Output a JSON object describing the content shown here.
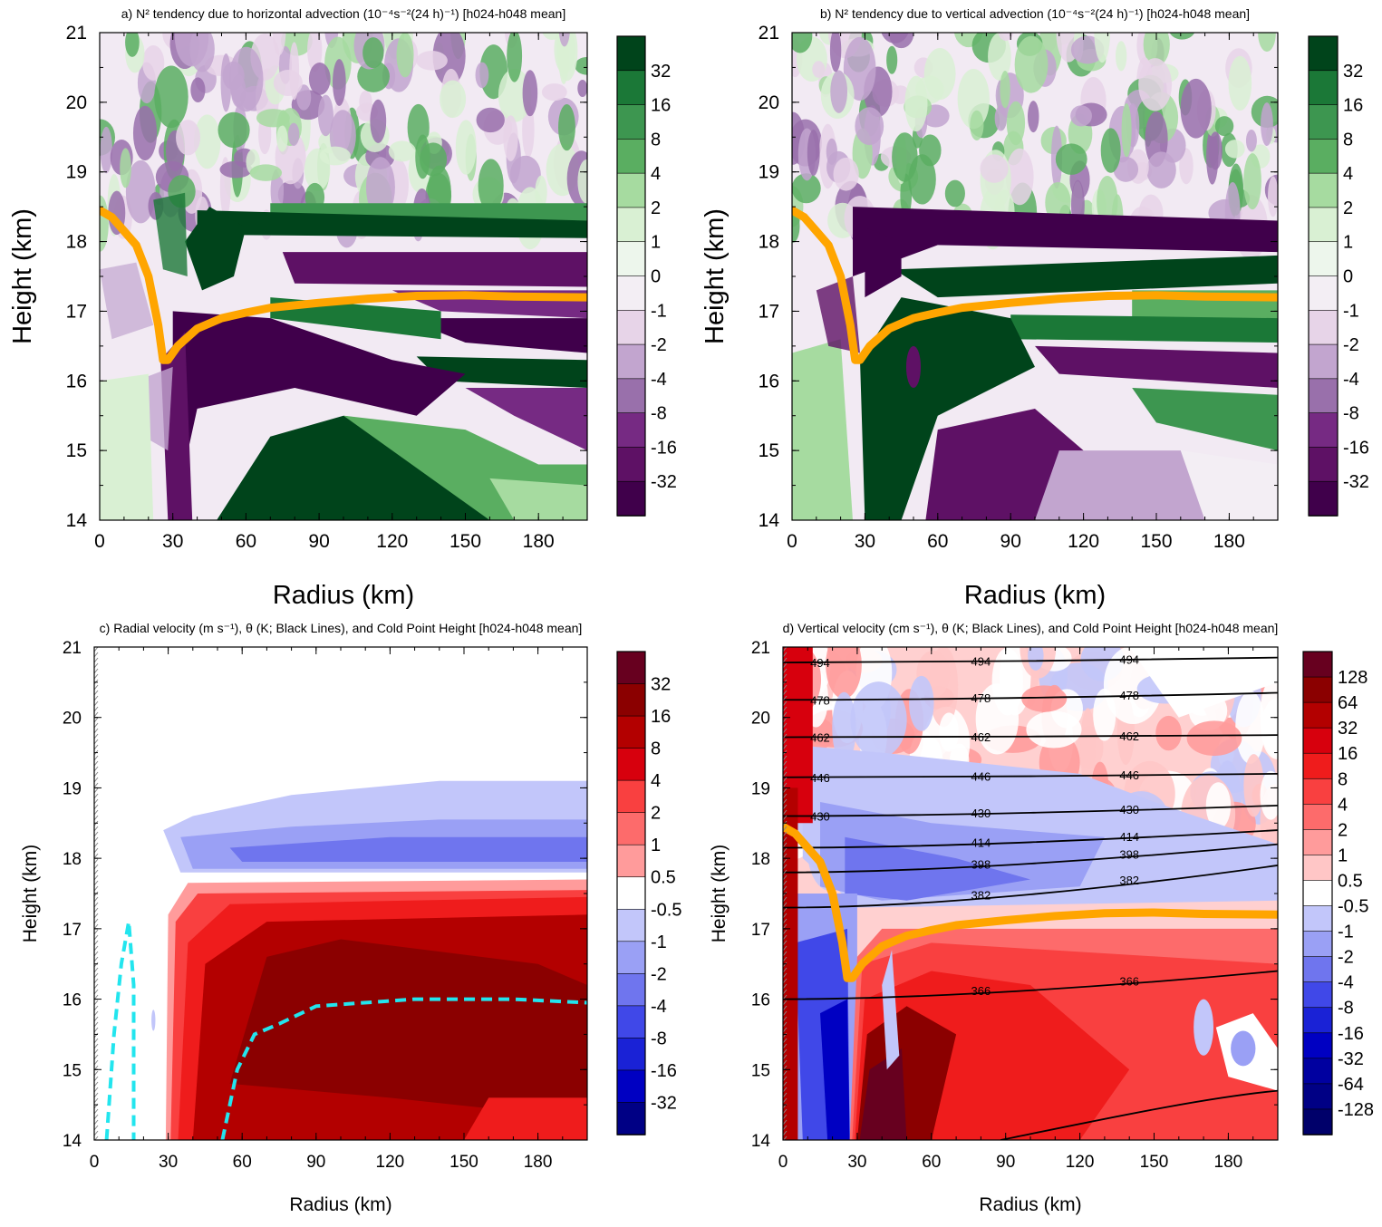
{
  "chart_data": [
    {
      "type": "heatmap",
      "title": "a) N² tendency due to horizontal advection (10⁻⁴s⁻²(24 h)⁻¹) [h024-h048 mean]",
      "xlabel": "Radius (km)",
      "ylabel": "Height (km)",
      "xlim": [
        0,
        200
      ],
      "ylim": [
        14,
        21
      ],
      "xticks": [
        "0",
        "30",
        "60",
        "90",
        "120",
        "150",
        "180"
      ],
      "yticks": [
        "14",
        "15",
        "16",
        "17",
        "18",
        "19",
        "20",
        "21"
      ],
      "colorbar": [
        "32",
        "16",
        "8",
        "4",
        "2",
        "1",
        "0",
        "-1",
        "-2",
        "-4",
        "-8",
        "-16",
        "-32"
      ],
      "cold_point_height": {
        "x": [
          0,
          5,
          10,
          15,
          20,
          24,
          26,
          28,
          32,
          40,
          50,
          60,
          70,
          90,
          110,
          130,
          150,
          170,
          200
        ],
        "y": [
          18.45,
          18.35,
          18.15,
          17.95,
          17.5,
          16.8,
          16.3,
          16.3,
          16.5,
          16.75,
          16.9,
          16.98,
          17.05,
          17.12,
          17.18,
          17.22,
          17.23,
          17.21,
          17.2
        ]
      }
    },
    {
      "type": "heatmap",
      "title": "b) N² tendency due to vertical advection (10⁻⁴s⁻²(24 h)⁻¹) [h024-h048 mean]",
      "xlabel": "Radius (km)",
      "ylabel": "Height (km)",
      "xlim": [
        0,
        200
      ],
      "ylim": [
        14,
        21
      ],
      "xticks": [
        "0",
        "30",
        "60",
        "90",
        "120",
        "150",
        "180"
      ],
      "yticks": [
        "14",
        "15",
        "16",
        "17",
        "18",
        "19",
        "20",
        "21"
      ],
      "colorbar": [
        "32",
        "16",
        "8",
        "4",
        "2",
        "1",
        "0",
        "-1",
        "-2",
        "-4",
        "-8",
        "-16",
        "-32"
      ],
      "cold_point_height": {
        "x": [
          0,
          5,
          10,
          15,
          20,
          24,
          26,
          28,
          32,
          40,
          50,
          60,
          70,
          90,
          110,
          130,
          150,
          170,
          200
        ],
        "y": [
          18.45,
          18.35,
          18.15,
          17.95,
          17.5,
          16.8,
          16.3,
          16.3,
          16.5,
          16.75,
          16.9,
          16.98,
          17.05,
          17.12,
          17.18,
          17.22,
          17.23,
          17.21,
          17.2
        ]
      }
    },
    {
      "type": "heatmap",
      "title": "c) Radial velocity (m s⁻¹), θ (K; Black Lines), and Cold Point Height [h024-h048 mean]",
      "xlabel": "Radius (km)",
      "ylabel": "Height (km)",
      "xlim": [
        0,
        200
      ],
      "ylim": [
        14,
        21
      ],
      "xticks": [
        "0",
        "30",
        "60",
        "90",
        "120",
        "150",
        "180"
      ],
      "yticks": [
        "14",
        "15",
        "16",
        "17",
        "18",
        "19",
        "20",
        "21"
      ],
      "colorbar": [
        "32",
        "16",
        "8",
        "4",
        "2",
        "1",
        "0.5",
        "-0.5",
        "-1",
        "-2",
        "-4",
        "-8",
        "-16",
        "-32"
      ]
    },
    {
      "type": "heatmap",
      "title": "d) Vertical velocity (cm s⁻¹), θ (K; Black Lines), and Cold Point Height [h024-h048 mean]",
      "xlabel": "Radius (km)",
      "ylabel": "Height (km)",
      "xlim": [
        0,
        200
      ],
      "ylim": [
        14,
        21
      ],
      "xticks": [
        "0",
        "30",
        "60",
        "90",
        "120",
        "150",
        "180"
      ],
      "yticks": [
        "14",
        "15",
        "16",
        "17",
        "18",
        "19",
        "20",
        "21"
      ],
      "colorbar": [
        "128",
        "64",
        "32",
        "16",
        "8",
        "4",
        "2",
        "1",
        "0.5",
        "-0.5",
        "-1",
        "-2",
        "-4",
        "-8",
        "-16",
        "-32",
        "-64",
        "-128"
      ],
      "theta_contour_labels": [
        "494",
        "478",
        "462",
        "446",
        "430",
        "414",
        "398",
        "382",
        "366"
      ],
      "cold_point_height": {
        "x": [
          0,
          5,
          10,
          15,
          20,
          24,
          26,
          28,
          32,
          40,
          50,
          60,
          70,
          90,
          110,
          130,
          150,
          170,
          200
        ],
        "y": [
          18.45,
          18.35,
          18.15,
          17.95,
          17.5,
          16.8,
          16.3,
          16.3,
          16.5,
          16.75,
          16.9,
          16.98,
          17.05,
          17.12,
          17.18,
          17.22,
          17.23,
          17.21,
          17.2
        ]
      }
    }
  ],
  "colors": {
    "cold_point": "#ffa500",
    "cyan_dashed": "#22e5ee",
    "N2": [
      "#00441b",
      "#1b7837",
      "#3d9650",
      "#5aae61",
      "#a6dba0",
      "#d9f0d3",
      "#edf6ec",
      "#f3eef4",
      "#e7d4e8",
      "#c2a5cf",
      "#9970ab",
      "#762a83",
      "#5e1165",
      "#40004b"
    ],
    "W": [
      "#67001f",
      "#8b0000",
      "#b30000",
      "#d7000d",
      "#ef1c1c",
      "#f94040",
      "#fd6b6b",
      "#ff9b9b",
      "#ffc6c6",
      "#ffffff",
      "#c2c6fa",
      "#9aa0f5",
      "#6f75ee",
      "#4048e8",
      "#1a22d6",
      "#0000c2",
      "#0000a0",
      "#000085",
      "#00006a"
    ]
  }
}
